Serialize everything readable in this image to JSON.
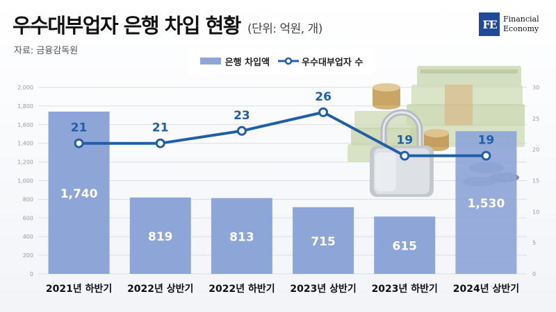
{
  "header": {
    "title": "우수대부업자 은행 차입 현황",
    "unit": "(단위: 억원, 개)",
    "source": "자료: 금융감독원"
  },
  "logo": {
    "mark": "FE",
    "line1": "Financial",
    "line2": "Economy"
  },
  "colors": {
    "bar": "#8ea5d8",
    "line": "#1f5ea8",
    "axis": "#999999",
    "grid": "#dddddd"
  },
  "chart_data": {
    "type": "bar+line",
    "categories": [
      "2021년 하반기",
      "2022년 상반기",
      "2022년 하반기",
      "2023년 상반기",
      "2023년 하반기",
      "2024년 상반기"
    ],
    "series": [
      {
        "name": "은행 차입액",
        "type": "bar",
        "axis": "left",
        "values": [
          1740,
          819,
          813,
          715,
          615,
          1530
        ]
      },
      {
        "name": "우수대부업자 수",
        "type": "line",
        "axis": "right",
        "values": [
          21,
          21,
          23,
          26,
          19,
          19
        ]
      }
    ],
    "y_left": {
      "min": 0,
      "max": 2000,
      "ticks": [
        "0",
        "200",
        "400",
        "600",
        "800",
        "1,000",
        "1,200",
        "1,400",
        "1,600",
        "1,800",
        "2,000"
      ]
    },
    "y_right": {
      "min": 0,
      "max": 30,
      "ticks": [
        "0",
        "5",
        "10",
        "15",
        "20",
        "25",
        "30"
      ]
    },
    "bar_labels": [
      "1,740",
      "819",
      "813",
      "715",
      "615",
      "1,530"
    ],
    "line_labels": [
      "21",
      "21",
      "23",
      "26",
      "19",
      "19"
    ],
    "grid": true,
    "legend_position": "top-center"
  },
  "decoration": {
    "image": "money-stacks-padlock-coins"
  }
}
